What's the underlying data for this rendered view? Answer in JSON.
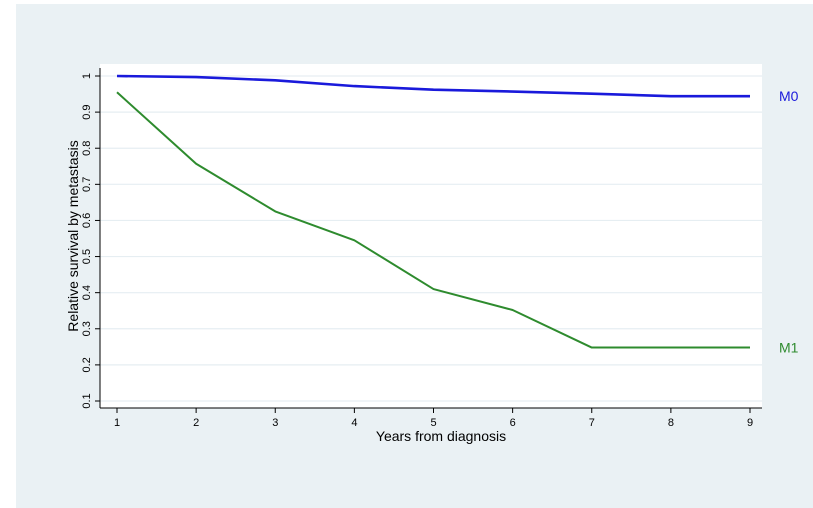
{
  "chart_data": {
    "type": "line",
    "title": "",
    "xlabel": "Years from diagnosis",
    "ylabel": "Relative survival by metastasis",
    "x": [
      1,
      2,
      3,
      4,
      5,
      6,
      7,
      8,
      9
    ],
    "xlim": [
      1,
      9
    ],
    "ylim": [
      0.1,
      1
    ],
    "xticks": [
      "1",
      "2",
      "3",
      "4",
      "5",
      "6",
      "7",
      "8",
      "9"
    ],
    "yticks": [
      "0.1",
      "0.2",
      "0.3",
      "0.4",
      "0.5",
      "0.6",
      "0.7",
      "0.8",
      "0.9",
      "1"
    ],
    "ytick_values": [
      0.1,
      0.2,
      0.3,
      0.4,
      0.5,
      0.6,
      0.7,
      0.8,
      0.9,
      1
    ],
    "grid": true,
    "legend": "none",
    "series": [
      {
        "name": "M0",
        "color": "#1a1adb",
        "values": [
          1.0,
          0.997,
          0.988,
          0.972,
          0.962,
          0.957,
          0.951,
          0.944,
          0.944
        ]
      },
      {
        "name": "M1",
        "color": "#2e8b2e",
        "values": [
          0.955,
          0.757,
          0.625,
          0.545,
          0.41,
          0.352,
          0.248,
          0.248,
          0.248
        ]
      }
    ]
  }
}
